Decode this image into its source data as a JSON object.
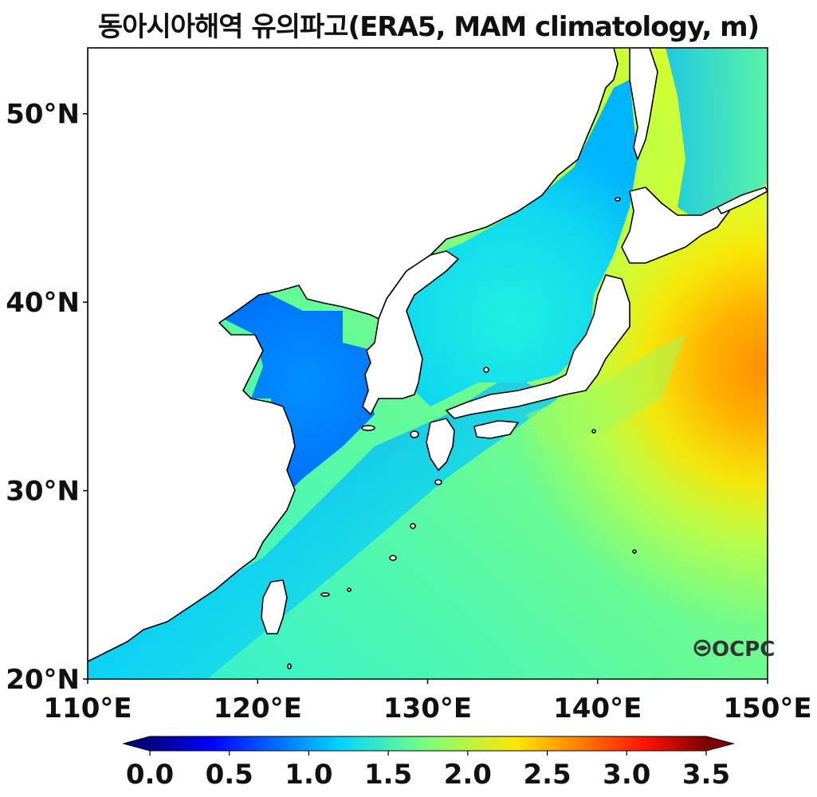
{
  "title": "동아시아해역 유의파고(ERA5, MAM climatology, m)",
  "logo_text": "OCPC",
  "map": {
    "lon_range": [
      110,
      150
    ],
    "lat_range": [
      20,
      53.5
    ],
    "x_ticks": [
      "110°E",
      "120°E",
      "130°E",
      "140°E",
      "150°E"
    ],
    "y_ticks": [
      "20°N",
      "30°N",
      "40°N",
      "50°N"
    ],
    "land_color": "#ffffff",
    "coastline_color": "#000000"
  },
  "colorbar": {
    "colormap": "jet",
    "min": 0.0,
    "max": 3.5,
    "extend": "both",
    "ticks": [
      "0.0",
      "0.5",
      "1.0",
      "1.5",
      "2.0",
      "2.5",
      "3.0",
      "3.5"
    ]
  }
}
